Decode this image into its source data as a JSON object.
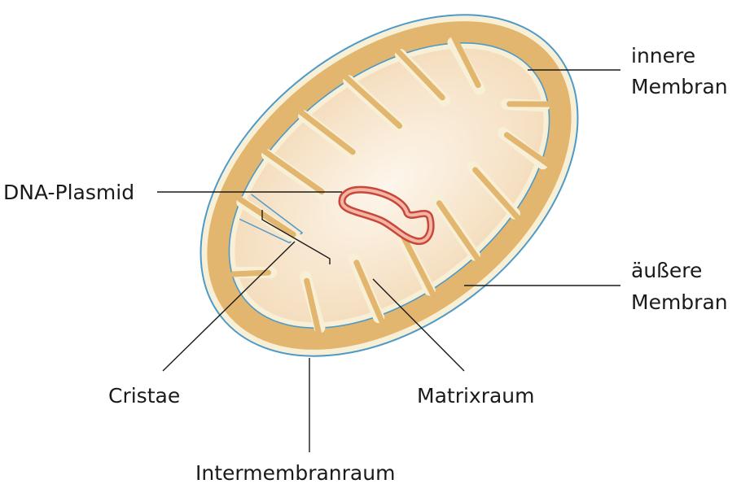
{
  "labels": {
    "inner_membrane_line1": "innere",
    "inner_membrane_line2": "Membran",
    "outer_membrane_line1": "äußere",
    "outer_membrane_line2": "Membran",
    "dna_plasmid": "DNA-Plasmid",
    "cristae": "Cristae",
    "matrix_space": "Matrixraum",
    "intermembrane_space": "Intermembranraum"
  },
  "colors": {
    "outer_membrane_stroke": "#4d9ac9",
    "membrane_fill": "#f8f0d6",
    "intermembrane": "#e3b66f",
    "matrix_center": "#fdf6ec",
    "matrix_edge": "#f4dcbc",
    "dna": "#c8473a"
  }
}
